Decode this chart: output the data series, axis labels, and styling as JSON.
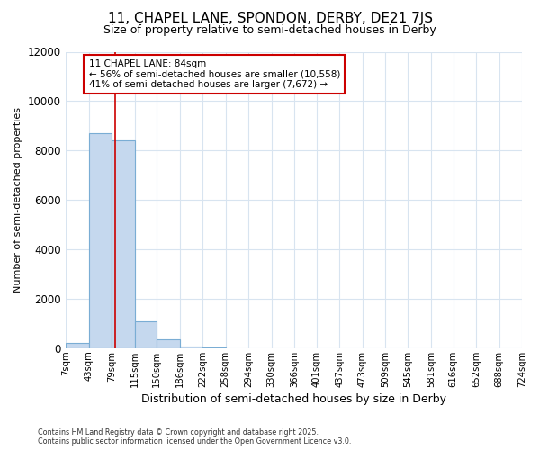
{
  "title": "11, CHAPEL LANE, SPONDON, DERBY, DE21 7JS",
  "subtitle": "Size of property relative to semi-detached houses in Derby",
  "xlabel": "Distribution of semi-detached houses by size in Derby",
  "ylabel": "Number of semi-detached properties",
  "annotation_text_line1": "11 CHAPEL LANE: 84sqm",
  "annotation_text_line2": "← 56% of semi-detached houses are smaller (10,558)",
  "annotation_text_line3": "41% of semi-detached houses are larger (7,672) →",
  "bin_edges": [
    7,
    43,
    79,
    115,
    150,
    186,
    222,
    258,
    294,
    330,
    366,
    401,
    437,
    473,
    509,
    545,
    581,
    616,
    652,
    688,
    724
  ],
  "bin_labels": [
    "7sqm",
    "43sqm",
    "79sqm",
    "115sqm",
    "150sqm",
    "186sqm",
    "222sqm",
    "258sqm",
    "294sqm",
    "330sqm",
    "366sqm",
    "401sqm",
    "437sqm",
    "473sqm",
    "509sqm",
    "545sqm",
    "581sqm",
    "616sqm",
    "652sqm",
    "688sqm",
    "724sqm"
  ],
  "bar_heights": [
    200,
    8700,
    8400,
    1100,
    350,
    80,
    20,
    0,
    0,
    0,
    0,
    0,
    0,
    0,
    0,
    0,
    0,
    0,
    0,
    0
  ],
  "bar_color": "#c5d8ee",
  "bar_edge_color": "#7aadd4",
  "vline_color": "#cc0000",
  "vline_x": 84,
  "ylim": [
    0,
    12000
  ],
  "yticks": [
    0,
    2000,
    4000,
    6000,
    8000,
    10000,
    12000
  ],
  "background_color": "#ffffff",
  "grid_color": "#d8e4f0",
  "footer_line1": "Contains HM Land Registry data © Crown copyright and database right 2025.",
  "footer_line2": "Contains public sector information licensed under the Open Government Licence v3.0."
}
